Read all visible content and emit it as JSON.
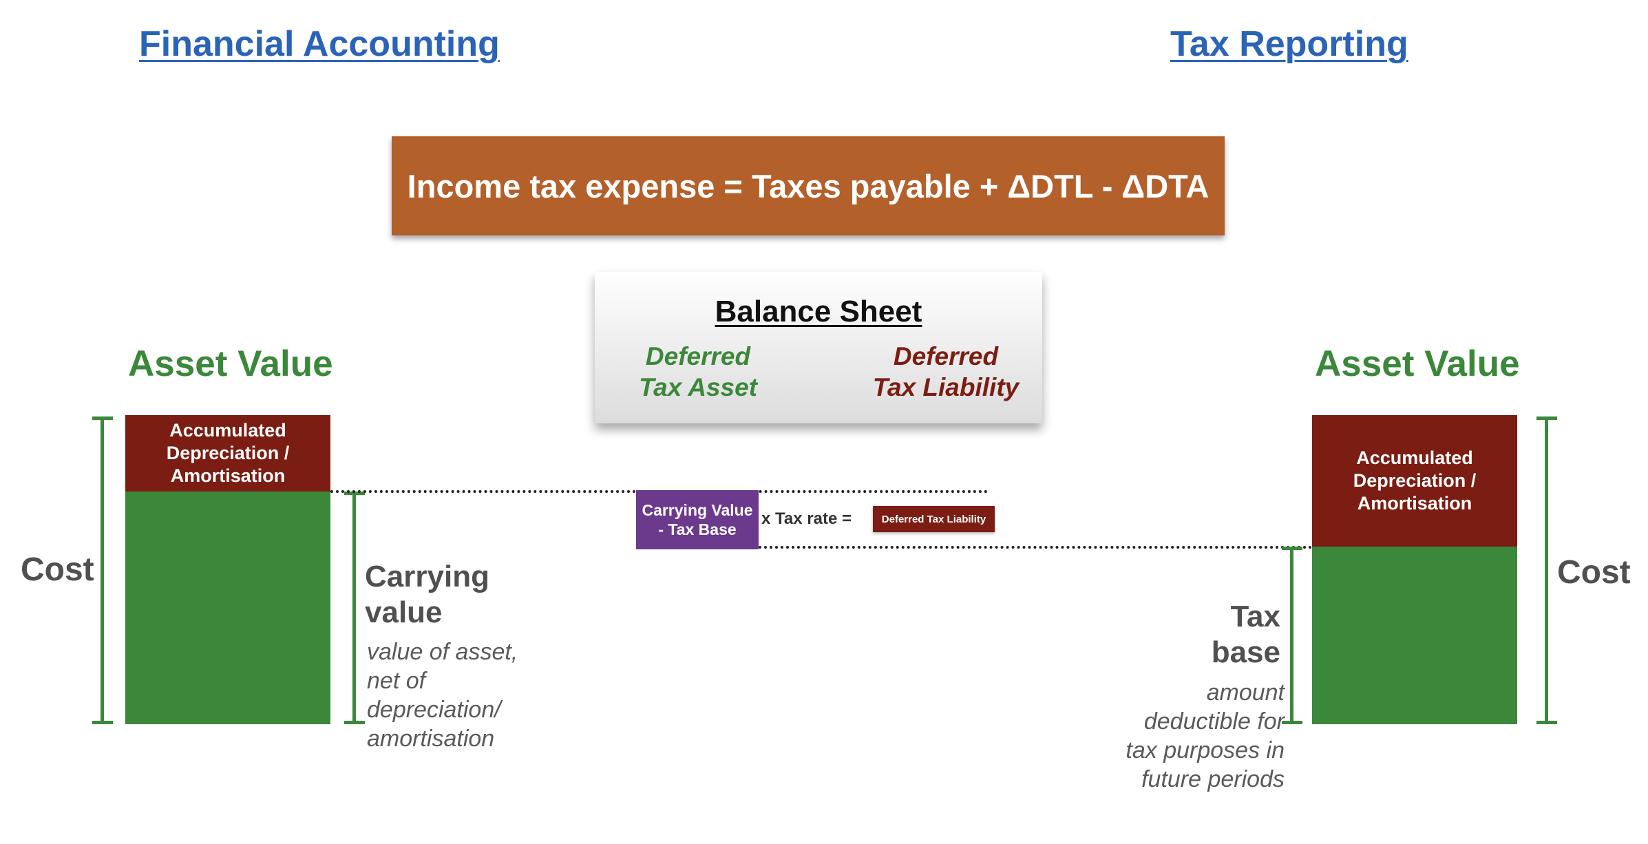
{
  "headings": {
    "left": "Financial Accounting",
    "right": "Tax Reporting"
  },
  "formula": "Income tax expense = Taxes payable + ΔDTL - ΔDTA",
  "balance_sheet": {
    "title": "Balance Sheet",
    "deferred_tax_asset": "Deferred\nTax Asset",
    "deferred_tax_liability": "Deferred\nTax Liability"
  },
  "left_panel": {
    "title": "Asset Value",
    "accumulated_label": "Accumulated\nDepreciation /\nAmortisation",
    "cost_label": "Cost",
    "carrying_label": "Carrying\nvalue",
    "carrying_desc": "value of asset,\nnet of\ndepreciation/\namortisation"
  },
  "right_panel": {
    "title": "Asset Value",
    "accumulated_label": "Accumulated\nDepreciation /\nAmortisation",
    "cost_label": "Cost",
    "taxbase_label": "Tax\nbase",
    "taxbase_desc": "amount\ndeductible for\ntax purposes in\nfuture periods"
  },
  "calculation": {
    "difference_box": "Carrying Value\n- Tax Base",
    "operator_text": "x Tax rate  =",
    "result_box": "Deferred Tax Liability"
  },
  "colors": {
    "heading_blue": "#2b64b7",
    "formula_orange": "#b3602a",
    "green": "#3b883b",
    "dark_red": "#7b1d12",
    "purple": "#6b3a8c",
    "gray_text": "#505050"
  }
}
